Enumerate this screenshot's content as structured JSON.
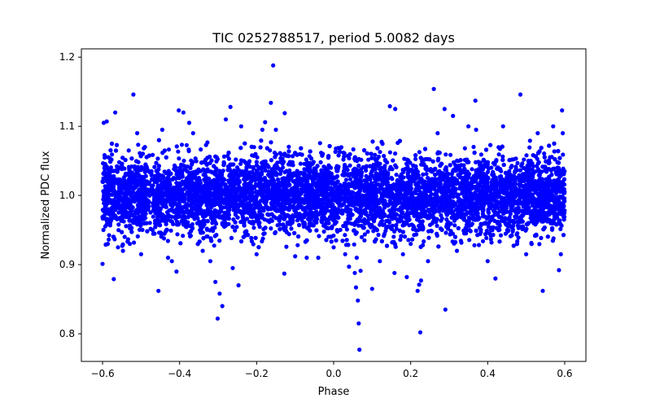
{
  "chart_data": {
    "type": "scatter",
    "title": "TIC 0252788517, period 5.0082 days",
    "xlabel": "Phase",
    "ylabel": "Normalized PDC flux",
    "xlim": [
      -0.655,
      0.655
    ],
    "ylim": [
      0.76,
      1.212
    ],
    "xticks": [
      -0.6,
      -0.4,
      -0.2,
      0.0,
      0.2,
      0.4,
      0.6
    ],
    "xtick_labels": [
      "−0.6",
      "−0.4",
      "−0.2",
      "0.0",
      "0.2",
      "0.4",
      "0.6"
    ],
    "yticks": [
      0.8,
      0.9,
      1.0,
      1.1,
      1.2
    ],
    "ytick_labels": [
      "0.8",
      "0.9",
      "1.0",
      "1.1",
      "1.2"
    ],
    "grid": false,
    "marker_color": "#0000ff",
    "series": [
      {
        "name": "flux",
        "points": [
          [
            -0.6,
            0.901
          ],
          [
            -0.597,
            1.105
          ],
          [
            -0.589,
            1.107
          ],
          [
            -0.571,
            0.879
          ],
          [
            -0.567,
            1.12
          ],
          [
            -0.56,
            0.925
          ],
          [
            -0.547,
            0.92
          ],
          [
            -0.529,
            0.93
          ],
          [
            -0.52,
            1.146
          ],
          [
            -0.51,
            1.09
          ],
          [
            -0.5,
            0.915
          ],
          [
            -0.49,
            1.07
          ],
          [
            -0.455,
            0.862
          ],
          [
            -0.445,
            1.095
          ],
          [
            -0.43,
            0.91
          ],
          [
            -0.42,
            0.905
          ],
          [
            -0.408,
            0.89
          ],
          [
            -0.402,
            1.123
          ],
          [
            -0.39,
            1.12
          ],
          [
            -0.375,
            1.105
          ],
          [
            -0.365,
            1.09
          ],
          [
            -0.34,
            0.92
          ],
          [
            -0.32,
            0.905
          ],
          [
            -0.307,
            0.875
          ],
          [
            -0.301,
            0.822
          ],
          [
            -0.296,
            0.858
          ],
          [
            -0.289,
            0.84
          ],
          [
            -0.28,
            1.11
          ],
          [
            -0.268,
            1.128
          ],
          [
            -0.262,
            0.895
          ],
          [
            -0.247,
            0.87
          ],
          [
            -0.24,
            1.1
          ],
          [
            -0.2,
            0.915
          ],
          [
            -0.185,
            1.095
          ],
          [
            -0.178,
            1.106
          ],
          [
            -0.163,
            1.134
          ],
          [
            -0.157,
            1.188
          ],
          [
            -0.15,
            1.095
          ],
          [
            -0.127,
            1.119
          ],
          [
            -0.128,
            0.887
          ],
          [
            -0.1,
            0.912
          ],
          [
            -0.07,
            0.91
          ],
          [
            -0.04,
            0.91
          ],
          [
            0.0,
            0.925
          ],
          [
            0.03,
            0.915
          ],
          [
            0.04,
            0.897
          ],
          [
            0.055,
            0.888
          ],
          [
            0.058,
            0.867
          ],
          [
            0.06,
            0.91
          ],
          [
            0.063,
            0.848
          ],
          [
            0.065,
            0.815
          ],
          [
            0.067,
            0.777
          ],
          [
            0.07,
            0.891
          ],
          [
            0.08,
            0.935
          ],
          [
            0.1,
            0.865
          ],
          [
            0.12,
            0.905
          ],
          [
            0.146,
            1.129
          ],
          [
            0.16,
            1.125
          ],
          [
            0.158,
            0.888
          ],
          [
            0.18,
            0.915
          ],
          [
            0.19,
            0.882
          ],
          [
            0.2,
            0.93
          ],
          [
            0.218,
            0.862
          ],
          [
            0.222,
            0.871
          ],
          [
            0.225,
            0.802
          ],
          [
            0.227,
            0.877
          ],
          [
            0.245,
            0.905
          ],
          [
            0.26,
            1.154
          ],
          [
            0.27,
            1.09
          ],
          [
            0.288,
            1.125
          ],
          [
            0.29,
            0.835
          ],
          [
            0.31,
            1.115
          ],
          [
            0.32,
            0.92
          ],
          [
            0.35,
            1.1
          ],
          [
            0.37,
            1.095
          ],
          [
            0.368,
            1.137
          ],
          [
            0.4,
            0.905
          ],
          [
            0.42,
            0.88
          ],
          [
            0.44,
            1.1
          ],
          [
            0.485,
            1.146
          ],
          [
            0.5,
            0.915
          ],
          [
            0.53,
            1.09
          ],
          [
            0.543,
            0.862
          ],
          [
            0.57,
            1.1
          ],
          [
            0.585,
            0.892
          ],
          [
            0.593,
            1.123
          ],
          [
            0.595,
            1.09
          ],
          [
            0.59,
            0.915
          ]
        ],
        "dense_band": {
          "x_range": [
            -0.6,
            0.6
          ],
          "core_y_range": [
            0.945,
            1.055
          ],
          "spread_y_range": [
            0.925,
            1.08
          ],
          "approx_point_count": 8000
        }
      }
    ]
  }
}
